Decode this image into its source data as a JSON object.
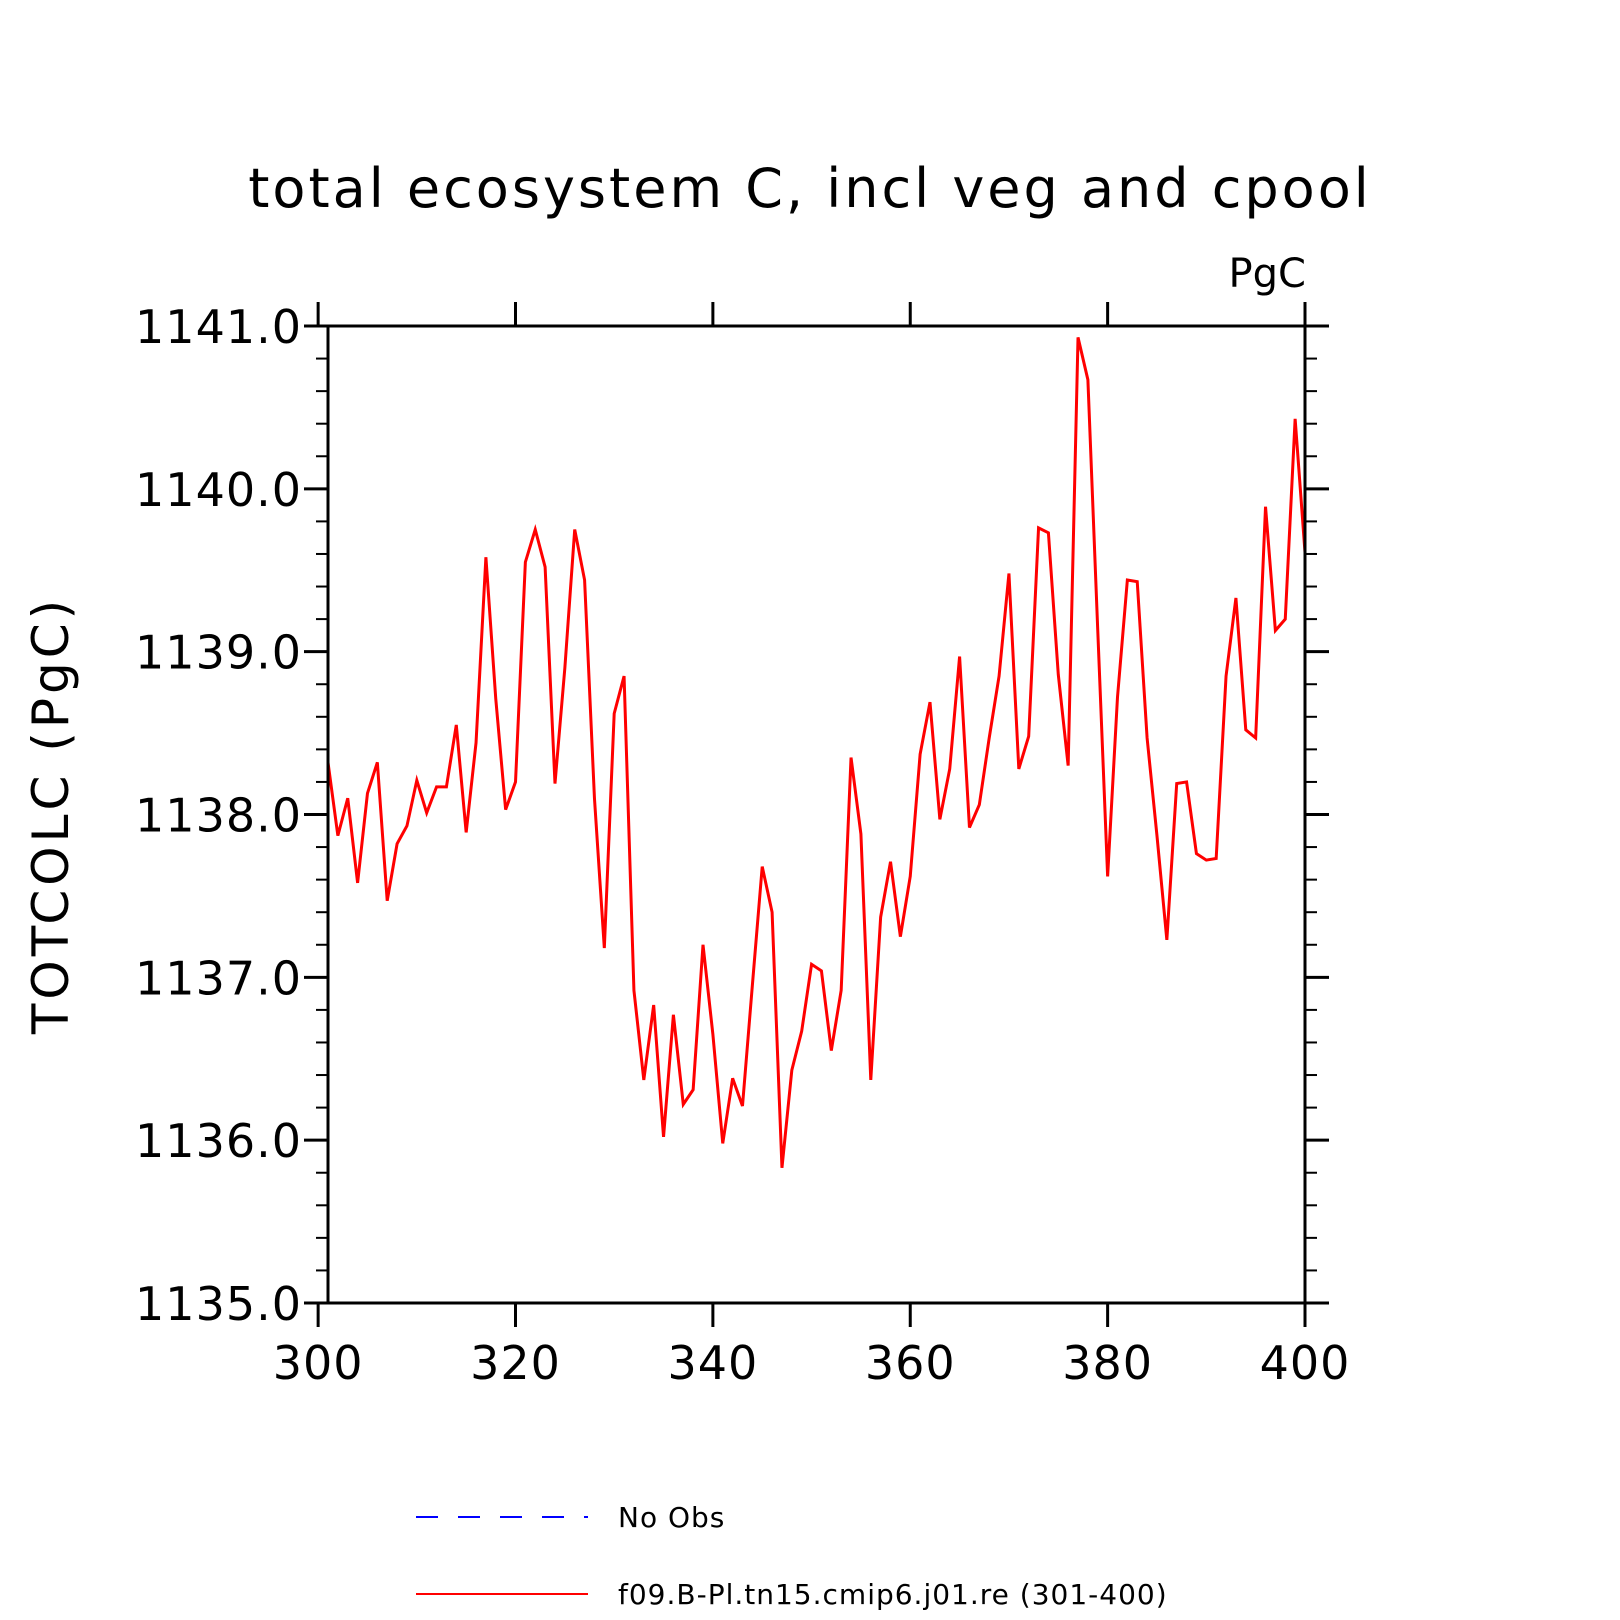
{
  "chart_data": {
    "type": "line",
    "title": "total ecosystem C, incl veg and cpool",
    "units": "PgC",
    "ylabel": "TOTCOLC  (PgC)",
    "xlabel": "",
    "xlim": [
      301,
      400
    ],
    "ylim": [
      1135.0,
      1141.0
    ],
    "xticks": [
      300,
      320,
      340,
      360,
      380,
      400
    ],
    "xtick_labels": [
      "300",
      "320",
      "340",
      "360",
      "380",
      "400"
    ],
    "yticks": [
      1135.0,
      1136.0,
      1137.0,
      1138.0,
      1139.0,
      1140.0,
      1141.0
    ],
    "ytick_labels": [
      "1135.0",
      "1136.0",
      "1137.0",
      "1138.0",
      "1139.0",
      "1140.0",
      "1141.0"
    ],
    "grid": false,
    "legend_position": "bottom",
    "legend": [
      {
        "label": "No Obs",
        "color": "#0000ff",
        "style": "dashed"
      },
      {
        "label": "f09.B-Pl.tn15.cmip6.j01.re (301-400)",
        "color": "#ff0000",
        "style": "solid"
      }
    ],
    "series": [
      {
        "name": "f09.B-Pl.tn15.cmip6.j01.re (301-400)",
        "color": "#ff0000",
        "x_start": 301,
        "x_step": 1,
        "values": [
          1138.32,
          1137.87,
          1138.1,
          1137.58,
          1138.13,
          1138.32,
          1137.47,
          1137.82,
          1137.93,
          1138.21,
          1138.01,
          1138.17,
          1138.17,
          1138.55,
          1137.89,
          1138.44,
          1139.58,
          1138.71,
          1138.03,
          1138.2,
          1139.55,
          1139.75,
          1139.52,
          1138.19,
          1138.9,
          1139.75,
          1139.44,
          1138.1,
          1137.18,
          1138.62,
          1138.85,
          1136.92,
          1136.37,
          1136.83,
          1136.02,
          1136.77,
          1136.22,
          1136.31,
          1137.2,
          1136.65,
          1135.98,
          1136.38,
          1136.21,
          1136.95,
          1137.68,
          1137.4,
          1135.83,
          1136.43,
          1136.67,
          1137.08,
          1137.04,
          1136.55,
          1136.92,
          1138.35,
          1137.88,
          1136.37,
          1137.37,
          1137.71,
          1137.25,
          1137.62,
          1138.37,
          1138.69,
          1137.97,
          1138.28,
          1138.97,
          1137.92,
          1138.06,
          1138.47,
          1138.85,
          1139.48,
          1138.28,
          1138.48,
          1139.76,
          1139.73,
          1138.86,
          1138.3,
          1140.93,
          1140.67,
          1139.13,
          1137.62,
          1138.72,
          1139.44,
          1139.43,
          1138.47,
          1137.87,
          1137.23,
          1138.19,
          1138.2,
          1137.76,
          1137.72,
          1137.73,
          1138.85,
          1139.33,
          1138.52,
          1138.47,
          1139.89,
          1139.13,
          1139.2,
          1140.43,
          1139.61
        ]
      }
    ]
  }
}
